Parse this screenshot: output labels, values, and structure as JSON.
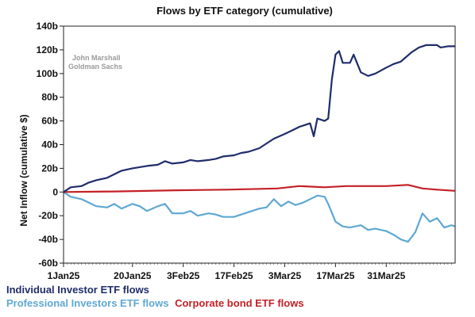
{
  "chart_data": {
    "type": "line",
    "title": "Flows by ETF category (cumulative)",
    "ylabel": "Net Inflow (cumulative $)",
    "xlabel": "",
    "watermark": [
      "John Marshall",
      "Goldman Sachs"
    ],
    "ylim": [
      -60,
      140
    ],
    "y_ticks": [
      -60,
      -40,
      -20,
      0,
      20,
      40,
      60,
      80,
      100,
      120,
      140
    ],
    "y_tick_labels": [
      "-60b",
      "-40b",
      "-20b",
      "0",
      "20b",
      "40b",
      "60b",
      "80b",
      "100b",
      "120b",
      "140b"
    ],
    "x_range": [
      "2025-01-01",
      "2025-04-19"
    ],
    "x_ticks": [
      "2025-01-01",
      "2025-01-20",
      "2025-02-03",
      "2025-02-17",
      "2025-03-03",
      "2025-03-17",
      "2025-03-31"
    ],
    "x_tick_labels": [
      "1Jan25",
      "20Jan25",
      "3Feb25",
      "17Feb25",
      "3Mar25",
      "17Mar25",
      "31Mar25"
    ],
    "grid": false,
    "legend_position": "bottom-left",
    "series": [
      {
        "name": "Individual Investor ETF flows",
        "color": "#1f2d6b",
        "points": [
          [
            "2025-01-01",
            0
          ],
          [
            "2025-01-03",
            4
          ],
          [
            "2025-01-06",
            5
          ],
          [
            "2025-01-08",
            8
          ],
          [
            "2025-01-10",
            10
          ],
          [
            "2025-01-13",
            12
          ],
          [
            "2025-01-15",
            15
          ],
          [
            "2025-01-17",
            18
          ],
          [
            "2025-01-20",
            20
          ],
          [
            "2025-01-22",
            21
          ],
          [
            "2025-01-24",
            22
          ],
          [
            "2025-01-27",
            23
          ],
          [
            "2025-01-29",
            26
          ],
          [
            "2025-01-31",
            24
          ],
          [
            "2025-02-03",
            25
          ],
          [
            "2025-02-05",
            27
          ],
          [
            "2025-02-07",
            26
          ],
          [
            "2025-02-10",
            27
          ],
          [
            "2025-02-12",
            28
          ],
          [
            "2025-02-14",
            30
          ],
          [
            "2025-02-17",
            31
          ],
          [
            "2025-02-19",
            33
          ],
          [
            "2025-02-21",
            34
          ],
          [
            "2025-02-24",
            37
          ],
          [
            "2025-02-26",
            41
          ],
          [
            "2025-02-28",
            45
          ],
          [
            "2025-03-03",
            49
          ],
          [
            "2025-03-05",
            52
          ],
          [
            "2025-03-07",
            55
          ],
          [
            "2025-03-10",
            58
          ],
          [
            "2025-03-11",
            47
          ],
          [
            "2025-03-12",
            62
          ],
          [
            "2025-03-14",
            60
          ],
          [
            "2025-03-15",
            62
          ],
          [
            "2025-03-16",
            95
          ],
          [
            "2025-03-17",
            116
          ],
          [
            "2025-03-18",
            119
          ],
          [
            "2025-03-19",
            109
          ],
          [
            "2025-03-21",
            109
          ],
          [
            "2025-03-22",
            116
          ],
          [
            "2025-03-24",
            101
          ],
          [
            "2025-03-26",
            98
          ],
          [
            "2025-03-28",
            100
          ],
          [
            "2025-03-31",
            105
          ],
          [
            "2025-04-02",
            108
          ],
          [
            "2025-04-04",
            110
          ],
          [
            "2025-04-07",
            118
          ],
          [
            "2025-04-09",
            122
          ],
          [
            "2025-04-11",
            124
          ],
          [
            "2025-04-14",
            124
          ],
          [
            "2025-04-15",
            122
          ],
          [
            "2025-04-17",
            123
          ],
          [
            "2025-04-19",
            123
          ]
        ]
      },
      {
        "name": "Professional Investors ETF flows",
        "color": "#5fa8d3",
        "points": [
          [
            "2025-01-01",
            0
          ],
          [
            "2025-01-03",
            -4
          ],
          [
            "2025-01-06",
            -6
          ],
          [
            "2025-01-08",
            -9
          ],
          [
            "2025-01-10",
            -12
          ],
          [
            "2025-01-13",
            -13
          ],
          [
            "2025-01-15",
            -10
          ],
          [
            "2025-01-17",
            -14
          ],
          [
            "2025-01-20",
            -10
          ],
          [
            "2025-01-22",
            -12
          ],
          [
            "2025-01-24",
            -16
          ],
          [
            "2025-01-27",
            -12
          ],
          [
            "2025-01-29",
            -10
          ],
          [
            "2025-01-31",
            -18
          ],
          [
            "2025-02-03",
            -18
          ],
          [
            "2025-02-05",
            -16
          ],
          [
            "2025-02-07",
            -20
          ],
          [
            "2025-02-10",
            -18
          ],
          [
            "2025-02-12",
            -19
          ],
          [
            "2025-02-14",
            -21
          ],
          [
            "2025-02-17",
            -21
          ],
          [
            "2025-02-19",
            -19
          ],
          [
            "2025-02-21",
            -17
          ],
          [
            "2025-02-24",
            -14
          ],
          [
            "2025-02-26",
            -13
          ],
          [
            "2025-02-28",
            -6
          ],
          [
            "2025-03-02",
            -12
          ],
          [
            "2025-03-04",
            -8
          ],
          [
            "2025-03-06",
            -11
          ],
          [
            "2025-03-08",
            -9
          ],
          [
            "2025-03-10",
            -6
          ],
          [
            "2025-03-12",
            -3
          ],
          [
            "2025-03-14",
            -4
          ],
          [
            "2025-03-15",
            -10
          ],
          [
            "2025-03-17",
            -25
          ],
          [
            "2025-03-19",
            -29
          ],
          [
            "2025-03-21",
            -30
          ],
          [
            "2025-03-24",
            -28
          ],
          [
            "2025-03-26",
            -32
          ],
          [
            "2025-03-28",
            -31
          ],
          [
            "2025-03-31",
            -33
          ],
          [
            "2025-04-02",
            -36
          ],
          [
            "2025-04-04",
            -40
          ],
          [
            "2025-04-06",
            -42
          ],
          [
            "2025-04-08",
            -34
          ],
          [
            "2025-04-10",
            -18
          ],
          [
            "2025-04-12",
            -25
          ],
          [
            "2025-04-14",
            -22
          ],
          [
            "2025-04-16",
            -30
          ],
          [
            "2025-04-18",
            -28
          ],
          [
            "2025-04-19",
            -29
          ]
        ]
      },
      {
        "name": "Corporate bond ETF flows",
        "color": "#c42026",
        "points": [
          [
            "2025-01-01",
            0
          ],
          [
            "2025-01-15",
            0.5
          ],
          [
            "2025-02-01",
            1.5
          ],
          [
            "2025-02-15",
            2
          ],
          [
            "2025-03-01",
            3
          ],
          [
            "2025-03-07",
            5
          ],
          [
            "2025-03-14",
            4
          ],
          [
            "2025-03-20",
            5
          ],
          [
            "2025-03-31",
            5
          ],
          [
            "2025-04-06",
            6
          ],
          [
            "2025-04-10",
            3
          ],
          [
            "2025-04-14",
            2
          ],
          [
            "2025-04-19",
            1
          ]
        ]
      }
    ]
  }
}
